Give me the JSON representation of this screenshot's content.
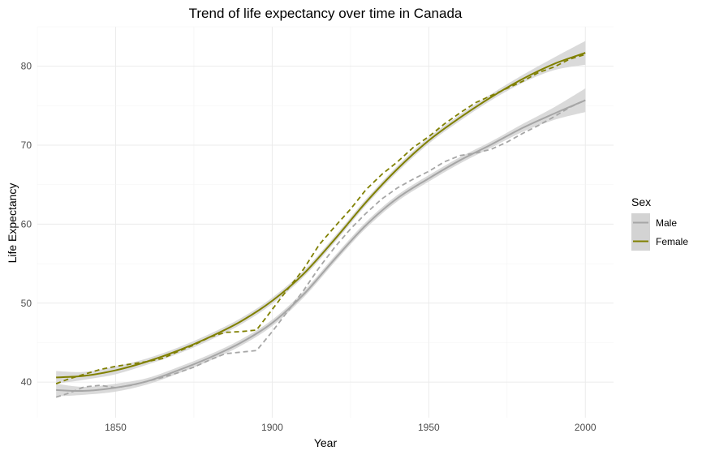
{
  "chart_data": {
    "type": "line",
    "title": "Trend of life expectancy over time in Canada",
    "xlabel": "Year",
    "ylabel": "Life Expectancy",
    "xlim": [
      1825,
      2009
    ],
    "ylim": [
      35.5,
      85
    ],
    "x_ticks": [
      1850,
      1900,
      1950,
      2000
    ],
    "y_ticks": [
      40,
      50,
      60,
      70,
      80
    ],
    "grid": true,
    "legend": {
      "title": "Sex",
      "position": "right"
    },
    "colors": {
      "Male": "#a6a6a6",
      "Female": "#808000",
      "ribbon": "#d3d3d3"
    },
    "observed": [
      {
        "name": "Male",
        "x": [
          1831,
          1835,
          1840,
          1845,
          1850,
          1855,
          1860,
          1865,
          1870,
          1875,
          1880,
          1885,
          1890,
          1895,
          1900,
          1905,
          1910,
          1915,
          1920,
          1925,
          1930,
          1935,
          1940,
          1945,
          1950,
          1955,
          1960,
          1965,
          1970,
          1975,
          1980,
          1985,
          1990,
          1995,
          2000
        ],
        "y": [
          38.1,
          38.6,
          39.4,
          39.6,
          39.3,
          39.6,
          40.1,
          40.6,
          41.2,
          41.9,
          42.8,
          43.6,
          43.8,
          44.0,
          46.4,
          49.0,
          51.6,
          54.5,
          57.1,
          59.4,
          61.4,
          63.2,
          64.6,
          65.7,
          66.7,
          67.9,
          68.7,
          69.0,
          69.5,
          70.4,
          71.5,
          72.5,
          73.6,
          74.8,
          75.7
        ]
      },
      {
        "name": "Female",
        "x": [
          1831,
          1835,
          1840,
          1845,
          1850,
          1855,
          1860,
          1865,
          1870,
          1875,
          1880,
          1885,
          1890,
          1895,
          1900,
          1905,
          1910,
          1915,
          1920,
          1925,
          1930,
          1935,
          1940,
          1945,
          1950,
          1955,
          1960,
          1965,
          1970,
          1975,
          1980,
          1985,
          1990,
          1995,
          2000
        ],
        "y": [
          39.8,
          40.4,
          41.0,
          41.6,
          42.0,
          42.3,
          42.6,
          43.0,
          43.9,
          44.7,
          45.7,
          46.3,
          46.4,
          46.6,
          49.2,
          51.8,
          54.3,
          57.4,
          59.7,
          61.9,
          64.4,
          66.3,
          67.9,
          69.7,
          71.1,
          72.7,
          74.1,
          75.4,
          76.3,
          77.2,
          78.1,
          79.2,
          79.9,
          80.9,
          81.5
        ]
      }
    ],
    "trend": [
      {
        "name": "Male",
        "x": [
          1831,
          1840,
          1850,
          1860,
          1870,
          1880,
          1890,
          1900,
          1910,
          1920,
          1930,
          1940,
          1950,
          1960,
          1970,
          1980,
          1990,
          2000
        ],
        "y": [
          39.0,
          38.9,
          39.3,
          40.1,
          41.5,
          43.1,
          45.0,
          47.5,
          51.1,
          55.6,
          59.9,
          63.3,
          65.8,
          68.1,
          70.1,
          72.2,
          74.0,
          75.7
        ],
        "lower": [
          38.2,
          38.4,
          38.8,
          39.7,
          41.1,
          42.7,
          44.6,
          47.1,
          50.7,
          55.2,
          59.5,
          62.9,
          65.4,
          67.7,
          69.7,
          71.7,
          73.2,
          74.2
        ],
        "upper": [
          39.8,
          39.4,
          39.8,
          40.5,
          41.9,
          43.5,
          45.4,
          47.9,
          51.5,
          56.0,
          60.3,
          63.7,
          66.2,
          68.5,
          70.5,
          72.7,
          74.8,
          77.2
        ]
      },
      {
        "name": "Female",
        "x": [
          1831,
          1840,
          1850,
          1860,
          1870,
          1880,
          1890,
          1900,
          1910,
          1920,
          1930,
          1940,
          1950,
          1960,
          1970,
          1980,
          1990,
          2000
        ],
        "y": [
          40.6,
          40.8,
          41.5,
          42.6,
          44.0,
          45.7,
          47.7,
          50.3,
          53.7,
          58.1,
          62.8,
          67.0,
          70.6,
          73.5,
          76.1,
          78.4,
          80.3,
          81.7
        ],
        "lower": [
          39.8,
          40.3,
          41.0,
          42.2,
          43.6,
          45.3,
          47.3,
          49.9,
          53.3,
          57.7,
          62.4,
          66.6,
          70.2,
          73.1,
          75.7,
          77.9,
          79.5,
          80.2
        ],
        "upper": [
          41.4,
          41.3,
          42.0,
          43.0,
          44.4,
          46.1,
          48.1,
          50.7,
          54.1,
          58.5,
          63.2,
          67.4,
          71.0,
          73.9,
          76.5,
          78.9,
          81.1,
          83.2
        ]
      }
    ]
  }
}
